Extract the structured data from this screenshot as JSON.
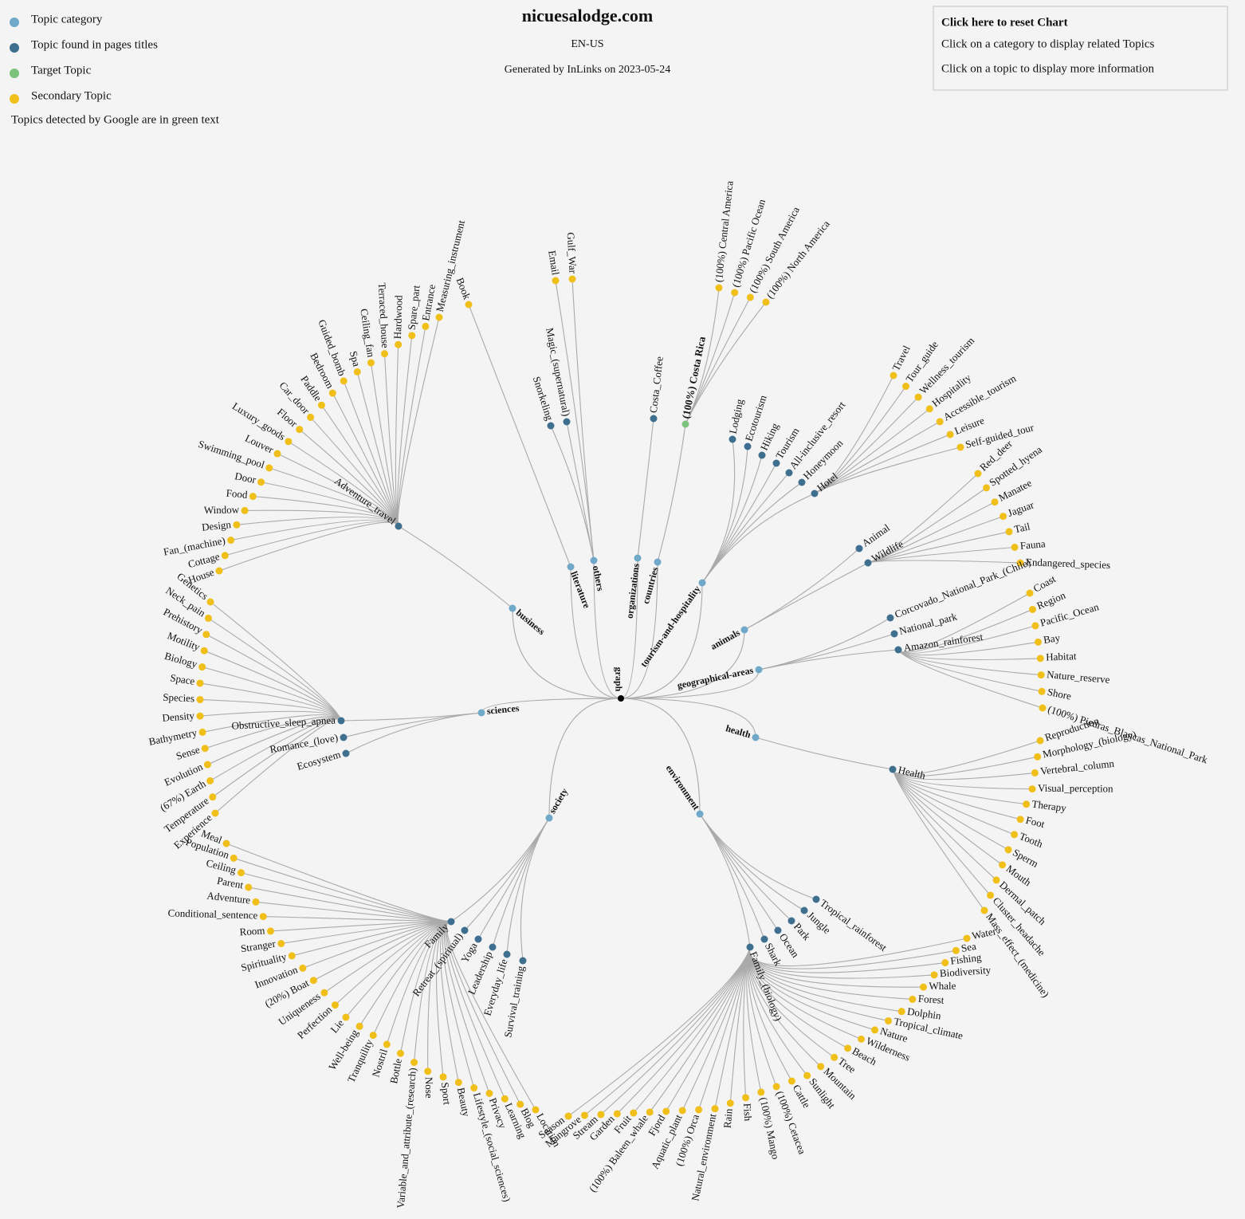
{
  "header": {
    "title": "nicuesalodge.com",
    "locale": "EN-US",
    "generated": "Generated by InLinks on 2023-05-24"
  },
  "legend": {
    "items": [
      {
        "label": "Topic category",
        "color": "#6fa8c9"
      },
      {
        "label": "Topic found in pages titles",
        "color": "#3e6f8e"
      },
      {
        "label": "Target Topic",
        "color": "#7cc47c"
      },
      {
        "label": "Secondary Topic",
        "color": "#f0bf1a"
      }
    ],
    "google_note": {
      "label": "Topics detected by Google are in green text",
      "color": "#1a8a1a"
    }
  },
  "info_box": {
    "reset": "Click here to reset Chart",
    "line1": "Click on a category to display related Topics",
    "line2": "Click on a topic to display more information"
  },
  "graph": {
    "root": "graph",
    "categories": [
      {
        "label": "business",
        "page_topics": [
          {
            "label": "Adventure_travel",
            "secondary_topics": [
              "House",
              "Cottage",
              "Fan_(machine)",
              "Design",
              "Window",
              "Food",
              "Door",
              "Swimming_pool",
              "Louver",
              "Luxury_goods",
              "Floor",
              "Car_door",
              "Paddle",
              "Bedroom",
              "Guided_bomb",
              "Spa",
              "Ceiling_fan",
              "Terraced_house",
              "Hardwood",
              "Spare_part",
              "Entrance",
              "Measuring_instrument"
            ]
          }
        ]
      },
      {
        "label": "literature",
        "secondary_topics": [
          "Book"
        ]
      },
      {
        "label": "others",
        "page_topics": [
          "Magic_(supernatural)",
          "Snorkeling"
        ],
        "secondary_topics": [
          "Email",
          "Gulf_War"
        ]
      },
      {
        "label": "organizations",
        "page_topics": [
          "Costa_Coffee"
        ]
      },
      {
        "label": "countries",
        "target_topics": [
          {
            "label": "(100%) Costa Rica",
            "detected_by_google": true,
            "secondary_topics": [
              {
                "label": "(100%) Central America",
                "detected_by_google": true
              },
              {
                "label": "(100%) Pacific Ocean",
                "detected_by_google": true
              },
              {
                "label": "(100%) South America",
                "detected_by_google": true
              },
              {
                "label": "(100%) North America",
                "detected_by_google": true
              }
            ]
          }
        ]
      },
      {
        "label": "tourism-and-hospitality",
        "page_topics": [
          "Lodging",
          "Ecotourism",
          "Hiking",
          "Tourism",
          "All-inclusive_resort",
          "Honeymoon",
          {
            "label": "Hotel",
            "secondary_topics": [
              "Travel",
              "Tour_guide",
              "Wellness_tourism",
              "Hospitality",
              "Accessible_tourism",
              "Leisure",
              "Self-guided_tour"
            ]
          }
        ]
      },
      {
        "label": "animals",
        "page_topics": [
          "Animal",
          {
            "label": "Wildlife",
            "secondary_topics": [
              "Red_deer",
              "Spotted_hyena",
              "Manatee",
              "Jaguar",
              "Tail",
              "Fauna",
              "Endangered_species"
            ]
          }
        ]
      },
      {
        "label": "geographical-areas",
        "page_topics": [
          "Corcovado_National_Park_(Chile)",
          "National_park",
          {
            "label": "Amazon_rainforest",
            "secondary_topics": [
              "Coast",
              "Region",
              "Pacific_Ocean",
              "Bay",
              "Habitat",
              "Nature_reserve",
              "Shore",
              {
                "label": "(100%) Piedras_Blancas_National_Park",
                "detected_by_google": true
              }
            ]
          }
        ]
      },
      {
        "label": "health",
        "page_topics": [
          {
            "label": "Health",
            "secondary_topics": [
              "Reproduction",
              "Morphology_(biology)",
              "Vertebral_column",
              "Visual_perception",
              "Therapy",
              "Foot",
              "Tooth",
              "Sperm",
              "Mouth",
              "Dermal_patch",
              "Cluster_headache",
              "Mass_effect_(medicine)"
            ]
          }
        ]
      },
      {
        "label": "environment",
        "page_topics": [
          "Tropical_rainforest",
          "Jungle",
          "Park",
          "Ocean",
          "Shark",
          {
            "label": "Family_(biology)",
            "secondary_topics": [
              "Water",
              "Sea",
              "Fishing",
              "Biodiversity",
              "Whale",
              "Forest",
              "Dolphin",
              "Tropical_climate",
              "Nature",
              "Wilderness",
              "Beach",
              "Tree",
              "Mountain",
              "Sunlight",
              "Cattle",
              {
                "label": "(100%) Cetacea",
                "detected_by_google": true
              },
              {
                "label": "(100%) Mango",
                "detected_by_google": true
              },
              "Fish",
              "Rain",
              "Natural_environment",
              {
                "label": "(100%) Orca",
                "detected_by_google": true
              },
              "Aquatic_plant",
              "Fjord",
              {
                "label": "(100%) Baleen_whale",
                "detected_by_google": true
              },
              "Fruit",
              "Garden",
              "Stream",
              "Mangrove",
              "Season"
            ]
          }
        ]
      },
      {
        "label": "society",
        "page_topics": [
          {
            "label": "Family",
            "secondary_topics": [
              "Meal",
              "Population",
              "Ceiling",
              "Parent",
              "Adventure",
              "Conditional_sentence",
              "Room",
              "Stranger",
              "Spirituality",
              "Innovation",
              {
                "label": "(20%) Boat",
                "detected_by_google": true
              },
              "Uniqueness",
              "Perfection",
              "Lie",
              "Well-being",
              "Tranquility",
              "Nostril",
              "Bottle",
              "Variable_and_attribute_(research)",
              "Nose",
              "Sport",
              "Beauty",
              "Lifestyle_(social_sciences)",
              "Privacy",
              "Learning",
              "Blog",
              "Location"
            ]
          },
          "Retreat_(spiritual)",
          "Yoga",
          "Leadership",
          "Everyday_life",
          "Survival_training"
        ]
      },
      {
        "label": "sciences",
        "page_topics": [
          {
            "label": "Obstructive_sleep_apnea",
            "secondary_topics": [
              "Genetics",
              "Neck_pain",
              "Prehistory",
              "Motility",
              "Biology",
              "Space",
              "Species",
              "Density",
              "Bathymetry",
              "Sense",
              "Evolution",
              {
                "label": "(67%) Earth",
                "detected_by_google": true
              },
              "Temperature",
              "Experience"
            ]
          },
          "Romance_(love)",
          "Ecosystem"
        ]
      }
    ]
  }
}
